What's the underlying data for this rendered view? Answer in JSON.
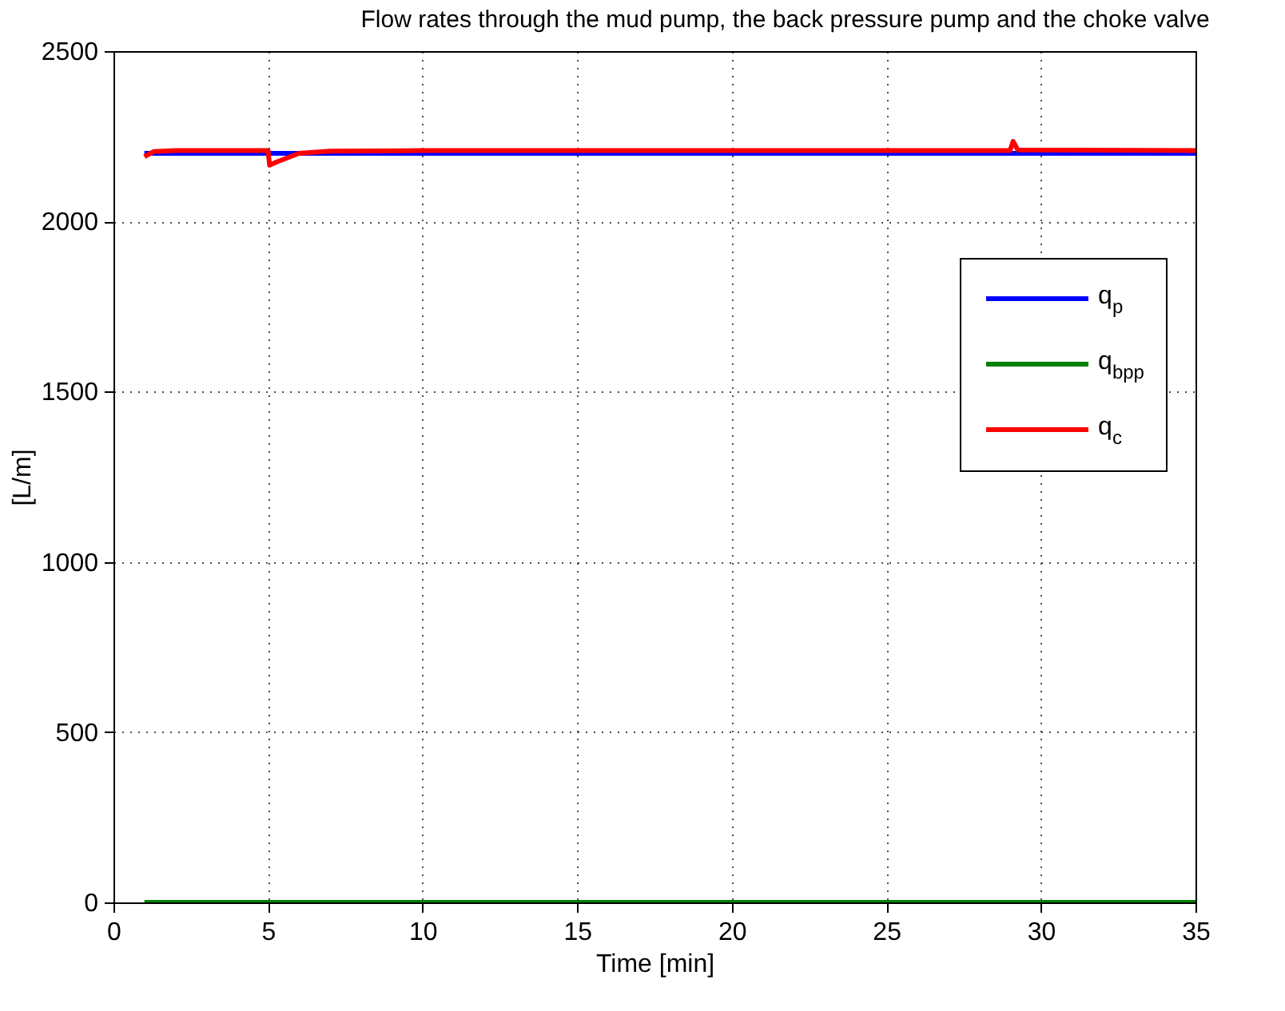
{
  "chart_data": {
    "type": "line",
    "title": "Flow rates through the mud pump, the back pressure pump and the choke valve",
    "xlabel": "Time [min]",
    "ylabel": "[L/m]",
    "xlim": [
      0,
      35
    ],
    "xticks": [
      0,
      5,
      10,
      15,
      20,
      25,
      30,
      35
    ],
    "ylim": [
      0,
      2500
    ],
    "yticks": [
      0,
      500,
      1000,
      1500,
      2000,
      2500
    ],
    "grid": true,
    "legend": "top right",
    "marker": "none",
    "line_style": "solid",
    "series": [
      {
        "name": "q$_{p}$",
        "color": "#0000ff",
        "x": [
          1,
          35
        ],
        "values": [
          2200,
          2200
        ]
      },
      {
        "name": "q$_{bpp}$",
        "color": "#008000",
        "x": [
          1,
          35
        ],
        "values": [
          0,
          0
        ]
      },
      {
        "name": "q$_{c}$",
        "color": "#ff0000",
        "x": [
          1,
          1.3,
          2,
          5,
          5.05,
          5.3,
          6,
          7,
          10,
          29,
          29.1,
          29.25,
          35
        ],
        "values": [
          2190,
          2205,
          2208,
          2208,
          2165,
          2175,
          2200,
          2206,
          2208,
          2208,
          2235,
          2210,
          2208
        ]
      }
    ]
  }
}
